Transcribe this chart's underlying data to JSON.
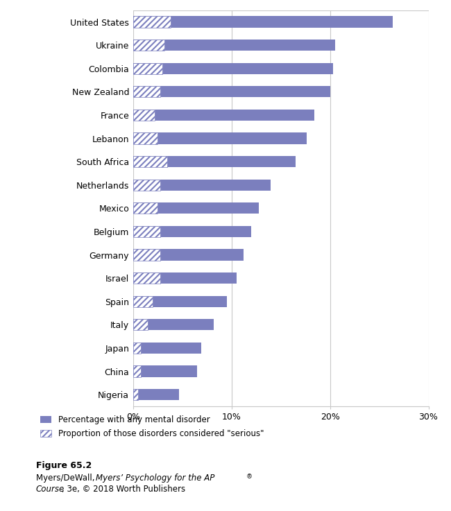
{
  "countries": [
    "United States",
    "Ukraine",
    "Colombia",
    "New Zealand",
    "France",
    "Lebanon",
    "South Africa",
    "Netherlands",
    "Mexico",
    "Belgium",
    "Germany",
    "Israel",
    "Spain",
    "Italy",
    "Japan",
    "China",
    "Nigeria"
  ],
  "any_disorder": [
    26.4,
    20.5,
    20.3,
    20.0,
    18.4,
    17.6,
    16.5,
    14.0,
    12.8,
    12.0,
    11.2,
    10.5,
    9.5,
    8.2,
    6.9,
    6.5,
    4.7
  ],
  "serious_proportion": [
    3.8,
    3.2,
    3.0,
    2.8,
    2.2,
    2.5,
    3.5,
    2.8,
    2.5,
    2.8,
    2.8,
    2.8,
    2.0,
    1.5,
    0.8,
    0.8,
    0.5
  ],
  "bar_color": "#7b7fbe",
  "background_color": "#ffffff",
  "xlim": [
    0,
    30
  ],
  "xticks": [
    0,
    10,
    20,
    30
  ],
  "xtick_labels": [
    "0%",
    "10%",
    "20%",
    "30%"
  ],
  "figure_caption_bold": "Figure 65.2",
  "legend_label1": "Percentage with any mental disorder",
  "legend_label2": "Proportion of those disorders considered \"serious\""
}
